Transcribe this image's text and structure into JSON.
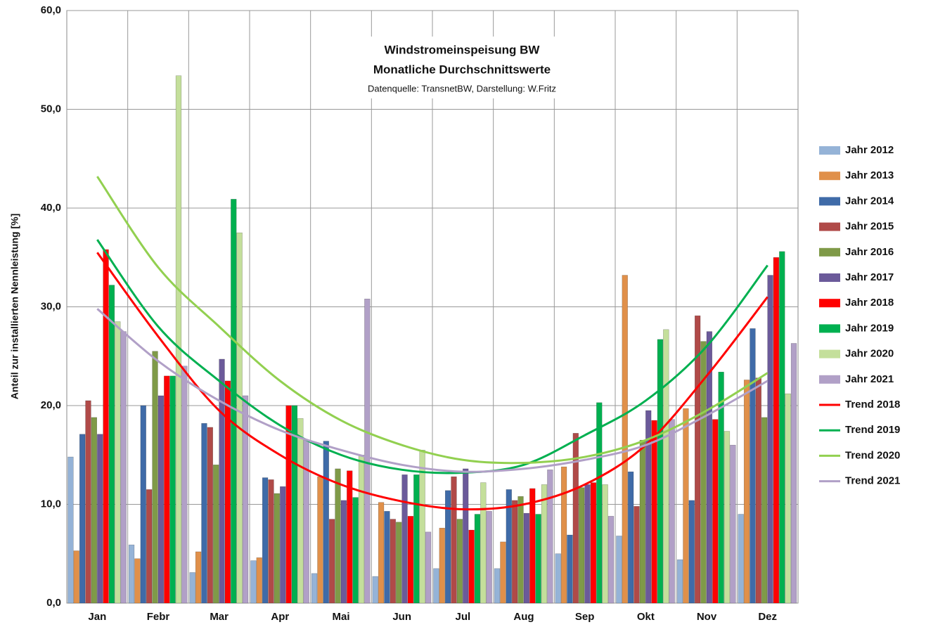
{
  "chart_data": {
    "type": "bar",
    "title": "Windstromeinspeisung BW",
    "subtitle": "Monatliche Durchschnittswerte",
    "source": "Datenquelle: TransnetBW, Darstellung: W.Fritz",
    "y_label": "Anteil zur installierten Nennleistung [%]",
    "categories": [
      "Jan",
      "Febr",
      "Mar",
      "Apr",
      "Mai",
      "Jun",
      "Jul",
      "Aug",
      "Sep",
      "Okt",
      "Nov",
      "Dez"
    ],
    "ylim": [
      0,
      60
    ],
    "yticks": [
      {
        "value": 0,
        "label": "0,0"
      },
      {
        "value": 10,
        "label": "10,0"
      },
      {
        "value": 20,
        "label": "20,0"
      },
      {
        "value": 30,
        "label": "30,0"
      },
      {
        "value": 40,
        "label": "40,0"
      },
      {
        "value": 50,
        "label": "50,0"
      },
      {
        "value": 60,
        "label": "60,0"
      }
    ],
    "grid": true,
    "legend": "right",
    "series": [
      {
        "name": "Jahr 2012",
        "type": "bar",
        "color": "#95b3d7",
        "values": [
          14.8,
          5.9,
          3.1,
          4.3,
          3.0,
          2.7,
          3.5,
          3.5,
          5.0,
          6.8,
          4.4,
          9.0
        ]
      },
      {
        "name": "Jahr 2013",
        "type": "bar",
        "color": "#e0904a",
        "values": [
          5.3,
          4.5,
          5.2,
          4.6,
          12.8,
          10.2,
          7.6,
          6.2,
          13.8,
          33.2,
          19.7,
          22.6
        ]
      },
      {
        "name": "Jahr 2014",
        "type": "bar",
        "color": "#3f6ba8",
        "values": [
          17.1,
          20.0,
          18.2,
          12.7,
          16.4,
          9.3,
          11.4,
          11.5,
          6.9,
          13.3,
          10.4,
          27.8
        ]
      },
      {
        "name": "Jahr 2015",
        "type": "bar",
        "color": "#b04a48",
        "values": [
          20.5,
          11.5,
          17.8,
          12.5,
          8.5,
          8.5,
          12.8,
          10.4,
          17.2,
          9.8,
          29.1,
          22.8
        ]
      },
      {
        "name": "Jahr 2016",
        "type": "bar",
        "color": "#7f9a48",
        "values": [
          18.8,
          25.5,
          14.0,
          11.1,
          13.6,
          8.2,
          8.5,
          10.8,
          11.7,
          16.5,
          26.5,
          18.8
        ]
      },
      {
        "name": "Jahr 2017",
        "type": "bar",
        "color": "#6b5a9a",
        "values": [
          17.1,
          21.0,
          24.7,
          11.8,
          10.4,
          13.0,
          13.6,
          9.1,
          12.0,
          19.5,
          27.5,
          33.2
        ]
      },
      {
        "name": "Jahr 2018",
        "type": "bar",
        "color": "#ff0000",
        "values": [
          35.8,
          23.0,
          22.5,
          20.0,
          13.4,
          8.8,
          7.4,
          11.6,
          12.2,
          18.5,
          18.6,
          35.0
        ]
      },
      {
        "name": "Jahr 2019",
        "type": "bar",
        "color": "#00b050",
        "values": [
          32.2,
          23.0,
          40.9,
          20.0,
          10.7,
          13.0,
          9.0,
          9.0,
          20.3,
          26.7,
          23.4,
          35.6
        ]
      },
      {
        "name": "Jahr 2020",
        "type": "bar",
        "color": "#c4df9b",
        "values": [
          28.5,
          53.4,
          37.5,
          18.7,
          15.0,
          15.5,
          12.2,
          12.0,
          12.0,
          27.7,
          17.4,
          21.2
        ]
      },
      {
        "name": "Jahr 2021",
        "type": "bar",
        "color": "#b1a0c7",
        "values": [
          27.5,
          24.0,
          21.0,
          16.5,
          30.8,
          7.2,
          9.3,
          13.5,
          8.8,
          18.6,
          16.0,
          26.3
        ]
      },
      {
        "name": "Trend 2018",
        "type": "line",
        "color": "#ff0000",
        "values": [
          35.5,
          27.0,
          19.5,
          15.0,
          12.0,
          10.3,
          9.5,
          10.0,
          12.0,
          16.0,
          23.0,
          31.0
        ]
      },
      {
        "name": "Trend 2019",
        "type": "line",
        "color": "#00b050",
        "values": [
          36.8,
          28.0,
          22.5,
          18.0,
          15.0,
          13.5,
          13.2,
          14.0,
          17.0,
          20.5,
          26.0,
          34.2
        ]
      },
      {
        "name": "Trend 2020",
        "type": "line",
        "color": "#92d050",
        "values": [
          43.2,
          34.0,
          28.0,
          22.5,
          18.5,
          16.0,
          14.5,
          14.2,
          14.8,
          16.5,
          19.5,
          23.3
        ]
      },
      {
        "name": "Trend 2021",
        "type": "line",
        "color": "#b1a0c7",
        "values": [
          29.8,
          24.5,
          20.5,
          17.5,
          15.5,
          14.0,
          13.3,
          13.6,
          14.5,
          16.0,
          19.0,
          22.5
        ]
      }
    ]
  }
}
